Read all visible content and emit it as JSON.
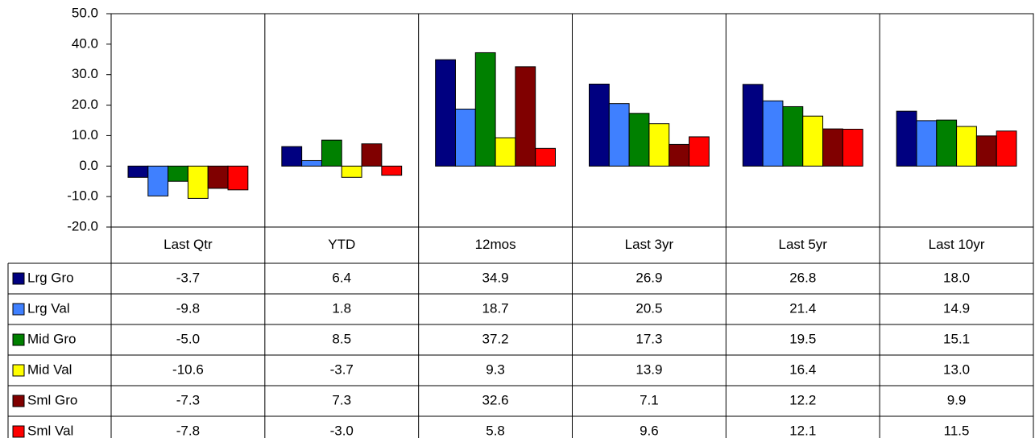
{
  "chart_data": {
    "type": "bar",
    "categories": [
      "Last Qtr",
      "YTD",
      "12mos",
      "Last 3yr",
      "Last 5yr",
      "Last 10yr"
    ],
    "series": [
      {
        "name": "Lrg Gro",
        "color": "#000080",
        "values": [
          -3.7,
          6.4,
          34.9,
          26.9,
          26.8,
          18.0
        ],
        "value_labels": [
          "-3.7",
          "6.4",
          "34.9",
          "26.9",
          "26.8",
          "18.0"
        ]
      },
      {
        "name": "Lrg Val",
        "color": "#3f80ff",
        "values": [
          -9.8,
          1.8,
          18.7,
          20.5,
          21.4,
          14.9
        ],
        "value_labels": [
          "-9.8",
          "1.8",
          "18.7",
          "20.5",
          "21.4",
          "14.9"
        ]
      },
      {
        "name": "Mid Gro",
        "color": "#008000",
        "values": [
          -5.0,
          8.5,
          37.2,
          17.3,
          19.5,
          15.1
        ],
        "value_labels": [
          "-5.0",
          "8.5",
          "37.2",
          "17.3",
          "19.5",
          "15.1"
        ]
      },
      {
        "name": "Mid Val",
        "color": "#ffff00",
        "values": [
          -10.6,
          -3.7,
          9.3,
          13.9,
          16.4,
          13.0
        ],
        "value_labels": [
          "-10.6",
          "-3.7",
          "9.3",
          "13.9",
          "16.4",
          "13.0"
        ]
      },
      {
        "name": "Sml Gro",
        "color": "#800000",
        "values": [
          -7.3,
          7.3,
          32.6,
          7.1,
          12.2,
          9.9
        ],
        "value_labels": [
          "-7.3",
          "7.3",
          "32.6",
          "7.1",
          "12.2",
          "9.9"
        ]
      },
      {
        "name": "Sml Val",
        "color": "#ff0000",
        "values": [
          -7.8,
          -3.0,
          5.8,
          9.6,
          12.1,
          11.5
        ],
        "value_labels": [
          "-7.8",
          "-3.0",
          "5.8",
          "9.6",
          "12.1",
          "11.5"
        ]
      }
    ],
    "ylim": [
      -20,
      50
    ],
    "yticks": [
      {
        "value": -20,
        "label": "-20.0"
      },
      {
        "value": -10,
        "label": "-10.0"
      },
      {
        "value": 0,
        "label": "0.0"
      },
      {
        "value": 10,
        "label": "10.0"
      },
      {
        "value": 20,
        "label": "20.0"
      },
      {
        "value": 30,
        "label": "30.0"
      },
      {
        "value": 40,
        "label": "40.0"
      },
      {
        "value": 50,
        "label": "50.0"
      }
    ],
    "grid": true,
    "legend": "table"
  }
}
